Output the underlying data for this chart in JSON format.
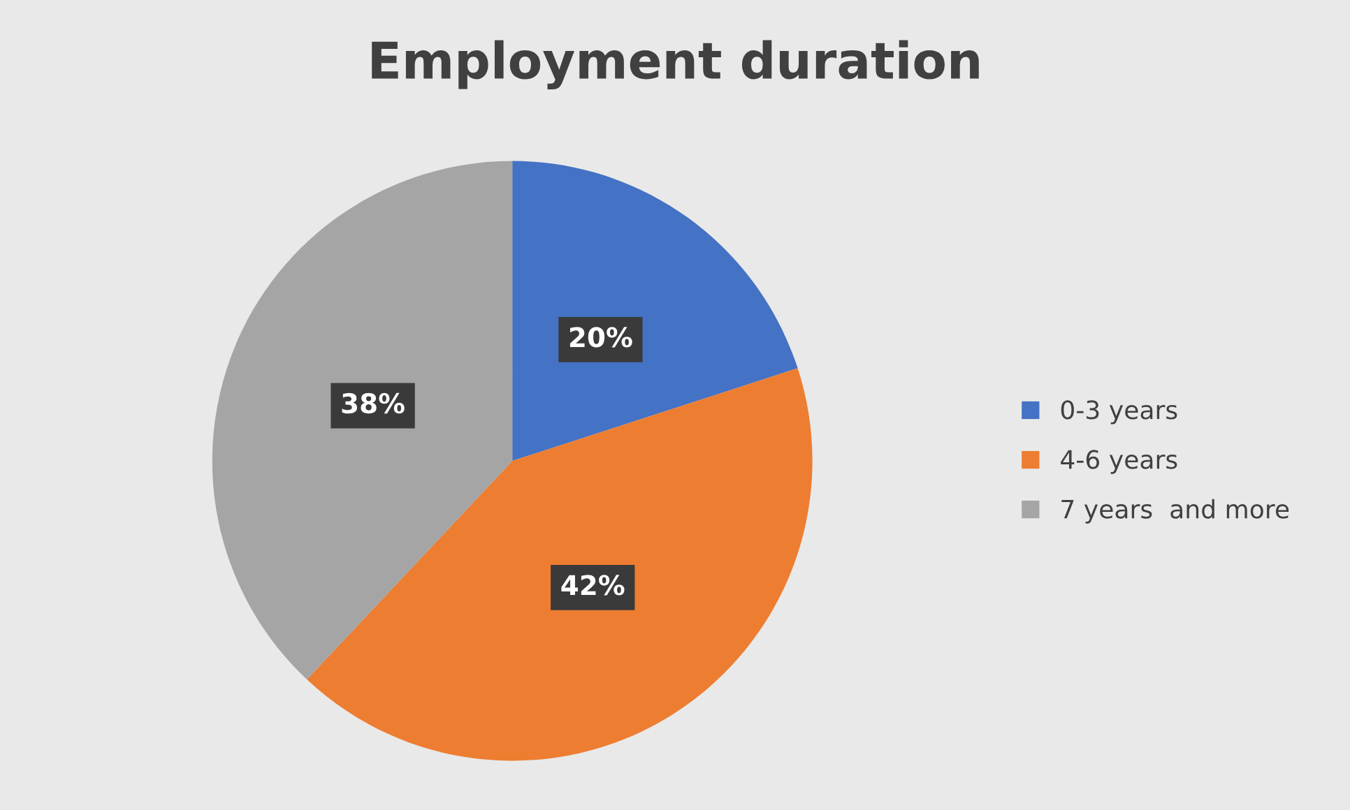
{
  "chart_data": {
    "type": "pie",
    "title": "Employment duration",
    "categories": [
      "0-3 years",
      "4-6 years",
      "7 years  and more"
    ],
    "values": [
      20,
      42,
      38
    ],
    "colors": [
      "#4472c4",
      "#ed7d31",
      "#a5a5a5"
    ],
    "value_labels": [
      "20%",
      "42%",
      "38%"
    ],
    "legend": "right"
  }
}
